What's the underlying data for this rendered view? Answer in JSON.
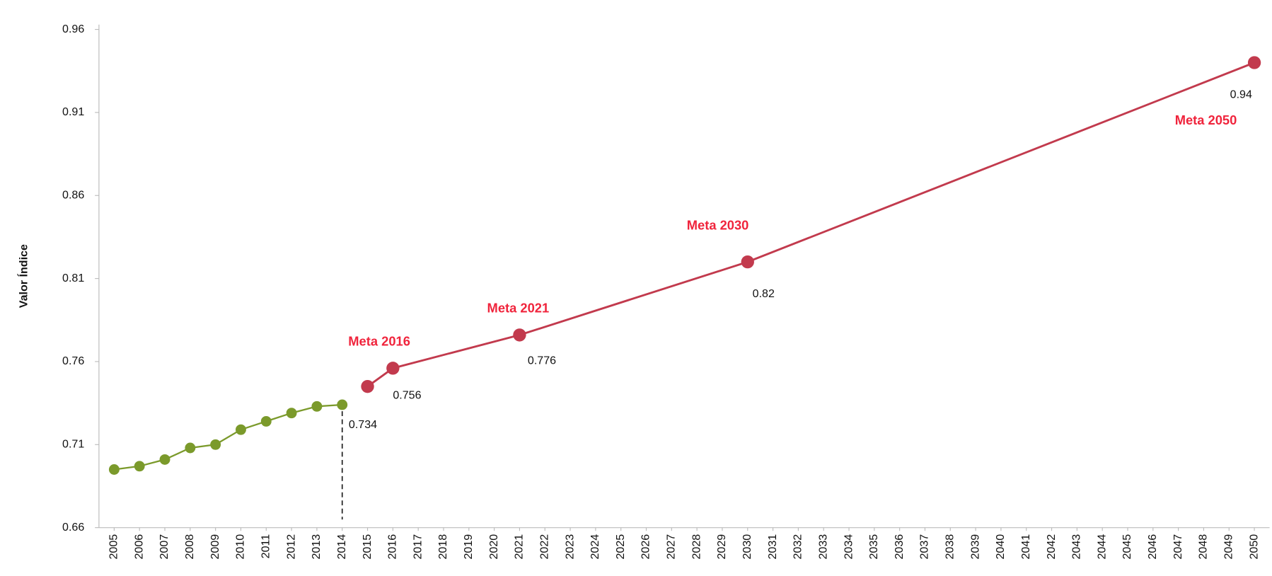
{
  "chart_data": {
    "type": "line",
    "ylabel": "Valor Índice",
    "xlim": [
      2004.4,
      2050.6
    ],
    "ylim": [
      0.66,
      0.96
    ],
    "yticks": [
      0.66,
      0.71,
      0.76,
      0.81,
      0.86,
      0.91,
      0.96
    ],
    "xticks": [
      2005,
      2006,
      2007,
      2008,
      2009,
      2010,
      2011,
      2012,
      2013,
      2014,
      2015,
      2016,
      2017,
      2018,
      2019,
      2020,
      2021,
      2022,
      2023,
      2024,
      2025,
      2026,
      2027,
      2028,
      2029,
      2030,
      2031,
      2032,
      2033,
      2034,
      2035,
      2036,
      2037,
      2038,
      2039,
      2040,
      2041,
      2042,
      2043,
      2044,
      2045,
      2046,
      2047,
      2048,
      2049,
      2050
    ],
    "series": [
      {
        "color": "#7b9a2b",
        "x": [
          2005,
          2006,
          2007,
          2008,
          2009,
          2010,
          2011,
          2012,
          2013,
          2014
        ],
        "values": [
          0.695,
          0.697,
          0.701,
          0.708,
          0.71,
          0.719,
          0.724,
          0.729,
          0.733,
          0.734
        ]
      },
      {
        "color": "#c23a4d",
        "x": [
          2015,
          2016,
          2021,
          2030,
          2050
        ],
        "values": [
          0.745,
          0.756,
          0.776,
          0.82,
          0.94
        ]
      }
    ],
    "annotations": [
      "Meta 2016",
      "Meta 2021",
      "Meta 2030",
      "Meta 2050"
    ],
    "reference_line_x": 2014
  }
}
